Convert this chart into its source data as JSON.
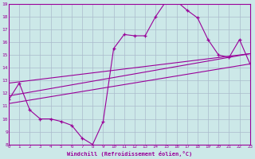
{
  "xlabel": "Windchill (Refroidissement éolien,°C)",
  "bg_color": "#cce8e8",
  "line_color": "#990099",
  "grid_color": "#aabbcc",
  "xmin": 0,
  "xmax": 23,
  "ymin": 8,
  "ymax": 19,
  "curve_x": [
    0,
    1,
    2,
    3,
    4,
    5,
    6,
    7,
    8,
    9,
    10,
    11,
    12,
    13,
    14,
    15,
    16,
    17,
    18,
    19,
    20,
    21,
    22,
    23
  ],
  "curve_y": [
    11.5,
    12.8,
    10.7,
    10.0,
    10.0,
    9.8,
    9.5,
    8.5,
    8.0,
    9.8,
    15.5,
    16.6,
    16.5,
    16.5,
    18.0,
    19.2,
    19.2,
    18.5,
    17.9,
    16.2,
    15.0,
    14.8,
    16.2,
    14.3
  ],
  "line1_x": [
    0,
    23
  ],
  "line1_y": [
    11.2,
    14.3
  ],
  "line2_x": [
    0,
    23
  ],
  "line2_y": [
    11.8,
    15.1
  ],
  "line3_x": [
    0,
    23
  ],
  "line3_y": [
    12.8,
    15.1
  ]
}
